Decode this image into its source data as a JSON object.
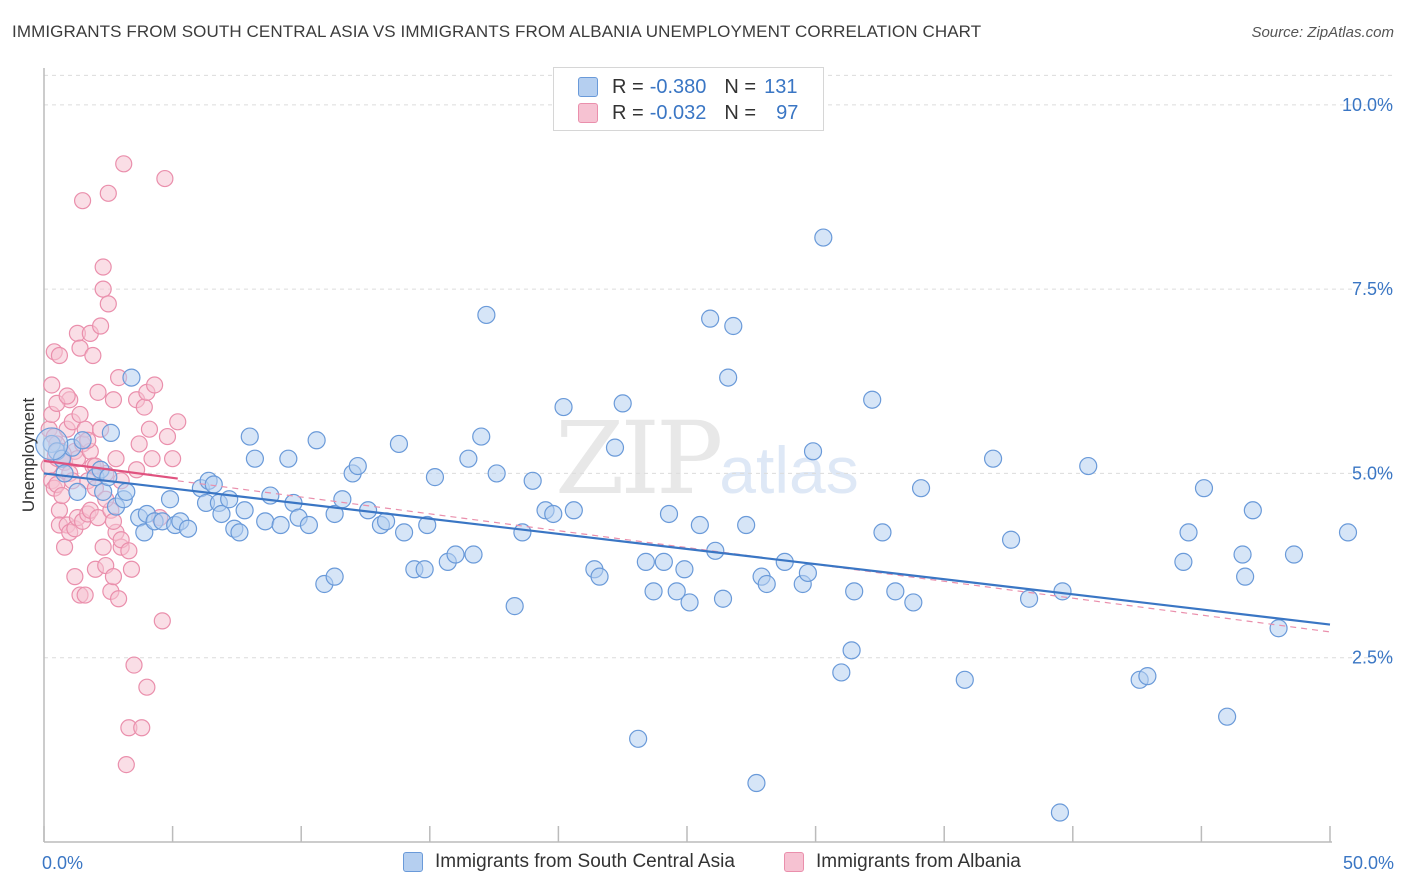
{
  "title": "IMMIGRANTS FROM SOUTH CENTRAL ASIA VS IMMIGRANTS FROM ALBANIA UNEMPLOYMENT CORRELATION CHART",
  "source": "Source: ZipAtlas.com",
  "watermark": {
    "part1": "ZIP",
    "part2": "atlas"
  },
  "colors": {
    "blue": "#3a76c4",
    "blue_fill": "#b5cff0",
    "blue_stroke": "#6a9ad9",
    "pink": "#e0527f",
    "pink_fill": "#f6c2d2",
    "pink_stroke": "#ea8fac",
    "grid": "#dcdcdc"
  },
  "legend": {
    "rows": [
      {
        "r_label": "R =",
        "r_value": "-0.380",
        "n_label": "N =",
        "n_value": "131"
      },
      {
        "r_label": "R =",
        "r_value": "-0.032",
        "n_label": "N =",
        "n_value": "97"
      }
    ]
  },
  "bottom_legend": {
    "series1": "Immigrants from South Central Asia",
    "series2": "Immigrants from Albania"
  },
  "chart_data": {
    "type": "scatter",
    "title": "IMMIGRANTS FROM SOUTH CENTRAL ASIA VS IMMIGRANTS FROM ALBANIA UNEMPLOYMENT CORRELATION CHART",
    "xlabel": "",
    "ylabel": "Unemployment",
    "xlim": [
      0,
      50
    ],
    "ylim": [
      0,
      10.5
    ],
    "x_tick_labels": [
      "0.0%",
      "50.0%"
    ],
    "y_ticks": [
      2.5,
      5.0,
      7.5,
      10.0
    ],
    "y_tick_labels": [
      "2.5%",
      "5.0%",
      "7.5%",
      "10.0%"
    ],
    "grid": true,
    "legend_position": "top-center",
    "series": [
      {
        "name": "Immigrants from South Central Asia",
        "R": -0.38,
        "N": 131,
        "trend": {
          "x": [
            0,
            50
          ],
          "y": [
            5.0,
            2.95
          ]
        },
        "points": [
          [
            0.3,
            5.4
          ],
          [
            0.5,
            5.3
          ],
          [
            0.7,
            5.2
          ],
          [
            0.8,
            5.0
          ],
          [
            1.1,
            5.35
          ],
          [
            1.3,
            4.75
          ],
          [
            1.5,
            5.45
          ],
          [
            2.0,
            4.95
          ],
          [
            2.2,
            5.05
          ],
          [
            2.3,
            4.75
          ],
          [
            2.5,
            4.95
          ],
          [
            2.6,
            5.55
          ],
          [
            2.8,
            4.55
          ],
          [
            3.1,
            4.65
          ],
          [
            3.2,
            4.75
          ],
          [
            3.4,
            6.3
          ],
          [
            3.7,
            4.4
          ],
          [
            3.9,
            4.2
          ],
          [
            4.0,
            4.45
          ],
          [
            4.3,
            4.35
          ],
          [
            4.6,
            4.35
          ],
          [
            4.9,
            4.65
          ],
          [
            5.1,
            4.3
          ],
          [
            5.3,
            4.35
          ],
          [
            5.6,
            4.25
          ],
          [
            6.1,
            4.8
          ],
          [
            6.3,
            4.6
          ],
          [
            6.4,
            4.9
          ],
          [
            6.6,
            4.85
          ],
          [
            6.8,
            4.6
          ],
          [
            6.9,
            4.45
          ],
          [
            7.2,
            4.65
          ],
          [
            7.4,
            4.25
          ],
          [
            7.6,
            4.2
          ],
          [
            7.8,
            4.5
          ],
          [
            8.0,
            5.5
          ],
          [
            8.2,
            5.2
          ],
          [
            8.6,
            4.35
          ],
          [
            8.8,
            4.7
          ],
          [
            9.2,
            4.3
          ],
          [
            9.5,
            5.2
          ],
          [
            9.7,
            4.6
          ],
          [
            9.9,
            4.4
          ],
          [
            10.3,
            4.3
          ],
          [
            10.6,
            5.45
          ],
          [
            10.9,
            3.5
          ],
          [
            11.3,
            4.45
          ],
          [
            11.3,
            3.6
          ],
          [
            11.6,
            4.65
          ],
          [
            12.0,
            5.0
          ],
          [
            12.2,
            5.1
          ],
          [
            12.6,
            4.5
          ],
          [
            13.1,
            4.3
          ],
          [
            13.3,
            4.35
          ],
          [
            13.8,
            5.4
          ],
          [
            14.0,
            4.2
          ],
          [
            14.4,
            3.7
          ],
          [
            14.8,
            3.7
          ],
          [
            14.9,
            4.3
          ],
          [
            15.2,
            4.95
          ],
          [
            15.7,
            3.8
          ],
          [
            16.0,
            3.9
          ],
          [
            16.5,
            5.2
          ],
          [
            16.7,
            3.9
          ],
          [
            17.0,
            5.5
          ],
          [
            17.2,
            7.15
          ],
          [
            17.6,
            5.0
          ],
          [
            18.3,
            3.2
          ],
          [
            18.6,
            4.2
          ],
          [
            19.0,
            4.9
          ],
          [
            19.5,
            4.5
          ],
          [
            19.8,
            4.45
          ],
          [
            20.2,
            5.9
          ],
          [
            20.6,
            4.5
          ],
          [
            21.4,
            3.7
          ],
          [
            21.6,
            3.6
          ],
          [
            22.2,
            5.35
          ],
          [
            22.5,
            5.95
          ],
          [
            23.1,
            1.4
          ],
          [
            23.4,
            3.8
          ],
          [
            23.7,
            3.4
          ],
          [
            24.1,
            3.8
          ],
          [
            24.3,
            4.45
          ],
          [
            24.6,
            3.4
          ],
          [
            24.9,
            3.7
          ],
          [
            25.1,
            3.25
          ],
          [
            25.5,
            4.3
          ],
          [
            25.9,
            7.1
          ],
          [
            26.1,
            3.95
          ],
          [
            26.4,
            3.3
          ],
          [
            26.6,
            6.3
          ],
          [
            26.8,
            7.0
          ],
          [
            27.3,
            4.3
          ],
          [
            27.7,
            0.8
          ],
          [
            27.9,
            3.6
          ],
          [
            28.1,
            3.5
          ],
          [
            28.8,
            3.8
          ],
          [
            29.5,
            3.5
          ],
          [
            29.7,
            3.65
          ],
          [
            29.9,
            5.3
          ],
          [
            30.3,
            8.2
          ],
          [
            31.0,
            2.3
          ],
          [
            31.4,
            2.6
          ],
          [
            31.5,
            3.4
          ],
          [
            32.2,
            6.0
          ],
          [
            32.6,
            4.2
          ],
          [
            33.1,
            3.4
          ],
          [
            33.8,
            3.25
          ],
          [
            34.1,
            4.8
          ],
          [
            35.8,
            2.2
          ],
          [
            36.9,
            5.2
          ],
          [
            37.6,
            4.1
          ],
          [
            38.3,
            3.3
          ],
          [
            39.6,
            3.4
          ],
          [
            39.5,
            0.4
          ],
          [
            40.6,
            5.1
          ],
          [
            42.6,
            2.2
          ],
          [
            42.9,
            2.25
          ],
          [
            44.3,
            3.8
          ],
          [
            44.5,
            4.2
          ],
          [
            45.1,
            4.8
          ],
          [
            46.0,
            1.7
          ],
          [
            46.6,
            3.9
          ],
          [
            46.7,
            3.6
          ],
          [
            47.0,
            4.5
          ],
          [
            48.0,
            2.9
          ],
          [
            48.6,
            3.9
          ],
          [
            50.7,
            4.2
          ]
        ]
      },
      {
        "name": "Immigrants from Albania",
        "R": -0.032,
        "N": 97,
        "trend": {
          "x": [
            0,
            5.2
          ],
          "y": [
            5.17,
            4.93
          ]
        },
        "trend_dashed": {
          "x": [
            5.2,
            50
          ],
          "y": [
            4.9,
            2.85
          ]
        },
        "points": [
          [
            0.2,
            5.6
          ],
          [
            0.2,
            5.1
          ],
          [
            0.3,
            5.8
          ],
          [
            0.3,
            4.9
          ],
          [
            0.4,
            4.8
          ],
          [
            0.4,
            6.65
          ],
          [
            0.4,
            5.5
          ],
          [
            0.5,
            4.85
          ],
          [
            0.5,
            5.4
          ],
          [
            0.6,
            4.5
          ],
          [
            0.6,
            6.6
          ],
          [
            0.6,
            4.3
          ],
          [
            0.7,
            5.2
          ],
          [
            0.7,
            4.7
          ],
          [
            0.8,
            4.0
          ],
          [
            0.8,
            5.15
          ],
          [
            0.9,
            4.3
          ],
          [
            0.9,
            5.6
          ],
          [
            1.0,
            4.2
          ],
          [
            1.0,
            5.0
          ],
          [
            1.0,
            6.0
          ],
          [
            1.1,
            4.9
          ],
          [
            1.1,
            5.7
          ],
          [
            1.2,
            5.3
          ],
          [
            1.2,
            4.25
          ],
          [
            1.2,
            3.6
          ],
          [
            1.3,
            6.9
          ],
          [
            1.3,
            5.2
          ],
          [
            1.3,
            4.4
          ],
          [
            1.4,
            3.35
          ],
          [
            1.4,
            6.7
          ],
          [
            1.5,
            5.4
          ],
          [
            1.5,
            4.35
          ],
          [
            1.5,
            8.7
          ],
          [
            1.6,
            3.35
          ],
          [
            1.6,
            5.6
          ],
          [
            1.7,
            4.9
          ],
          [
            1.7,
            4.45
          ],
          [
            1.8,
            5.3
          ],
          [
            1.8,
            4.5
          ],
          [
            1.8,
            6.9
          ],
          [
            1.9,
            6.6
          ],
          [
            1.9,
            5.1
          ],
          [
            2.0,
            3.7
          ],
          [
            2.0,
            4.8
          ],
          [
            2.1,
            6.1
          ],
          [
            2.1,
            4.4
          ],
          [
            2.2,
            5.6
          ],
          [
            2.2,
            7.0
          ],
          [
            2.3,
            7.5
          ],
          [
            2.3,
            7.8
          ],
          [
            2.3,
            4.0
          ],
          [
            2.4,
            3.75
          ],
          [
            2.4,
            5.0
          ],
          [
            2.5,
            8.8
          ],
          [
            2.5,
            7.3
          ],
          [
            2.6,
            3.4
          ],
          [
            2.6,
            4.5
          ],
          [
            2.7,
            3.6
          ],
          [
            2.7,
            6.0
          ],
          [
            2.8,
            4.2
          ],
          [
            2.8,
            5.2
          ],
          [
            2.9,
            3.3
          ],
          [
            2.9,
            6.3
          ],
          [
            3.0,
            4.0
          ],
          [
            3.0,
            4.9
          ],
          [
            3.1,
            9.2
          ],
          [
            3.2,
            1.05
          ],
          [
            3.3,
            1.55
          ],
          [
            3.4,
            3.7
          ],
          [
            3.5,
            2.4
          ],
          [
            3.6,
            6.0
          ],
          [
            3.7,
            5.4
          ],
          [
            3.8,
            1.55
          ],
          [
            3.9,
            5.9
          ],
          [
            4.0,
            6.1
          ],
          [
            4.0,
            2.1
          ],
          [
            4.1,
            5.6
          ],
          [
            4.2,
            5.2
          ],
          [
            4.3,
            6.2
          ],
          [
            4.5,
            4.4
          ],
          [
            4.6,
            3.0
          ],
          [
            4.7,
            9.0
          ],
          [
            4.8,
            5.5
          ],
          [
            5.0,
            5.2
          ],
          [
            5.2,
            5.7
          ],
          [
            0.3,
            6.2
          ],
          [
            0.5,
            5.95
          ],
          [
            0.9,
            6.05
          ],
          [
            1.4,
            5.8
          ],
          [
            1.7,
            5.45
          ],
          [
            2.0,
            5.1
          ],
          [
            2.4,
            4.65
          ],
          [
            2.7,
            4.35
          ],
          [
            3.0,
            4.1
          ],
          [
            3.3,
            3.95
          ],
          [
            3.6,
            5.05
          ]
        ]
      }
    ]
  }
}
